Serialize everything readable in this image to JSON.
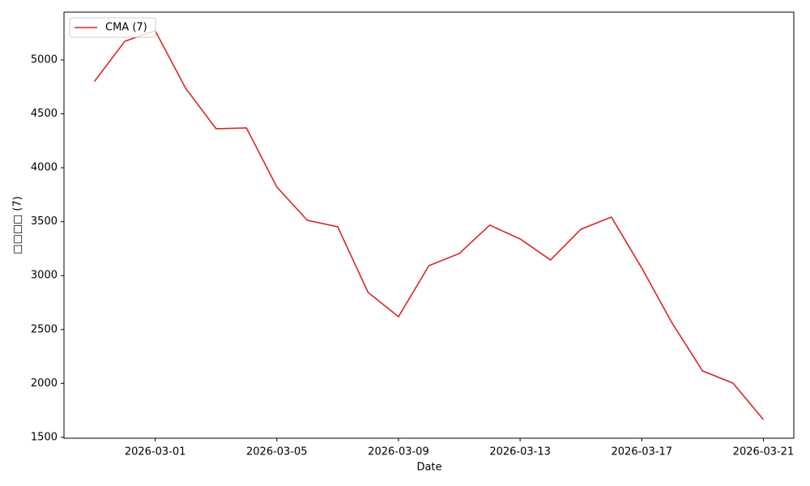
{
  "chart_data": {
    "type": "line",
    "xlabel": "Date",
    "ylabel": "□□□□ (7)",
    "x": [
      "2026-02-27",
      "2026-02-28",
      "2026-03-01",
      "2026-03-02",
      "2026-03-03",
      "2026-03-04",
      "2026-03-05",
      "2026-03-06",
      "2026-03-07",
      "2026-03-08",
      "2026-03-09",
      "2026-03-10",
      "2026-03-11",
      "2026-03-12",
      "2026-03-13",
      "2026-03-14",
      "2026-03-15",
      "2026-03-16",
      "2026-03-17",
      "2026-03-18",
      "2026-03-19",
      "2026-03-20",
      "2026-03-21"
    ],
    "series": [
      {
        "name": "CMA (7)",
        "color": "#d62728",
        "values": [
          4800,
          5173,
          5270,
          4737,
          4362,
          4369,
          3821,
          3513,
          3453,
          2844,
          2619,
          3092,
          3205,
          3468,
          3340,
          3145,
          3430,
          3543,
          3070,
          2559,
          2116,
          2003,
          1665
        ]
      }
    ],
    "xlim": [
      "2026-02-26",
      "2026-03-22"
    ],
    "xticks": [
      "2026-03-01",
      "2026-03-05",
      "2026-03-09",
      "2026-03-13",
      "2026-03-17",
      "2026-03-21"
    ],
    "ylim": [
      1492,
      5443
    ],
    "yticks": [
      1500,
      2000,
      2500,
      3000,
      3500,
      4000,
      4500,
      5000
    ],
    "legend": "upper left",
    "grid": false
  }
}
